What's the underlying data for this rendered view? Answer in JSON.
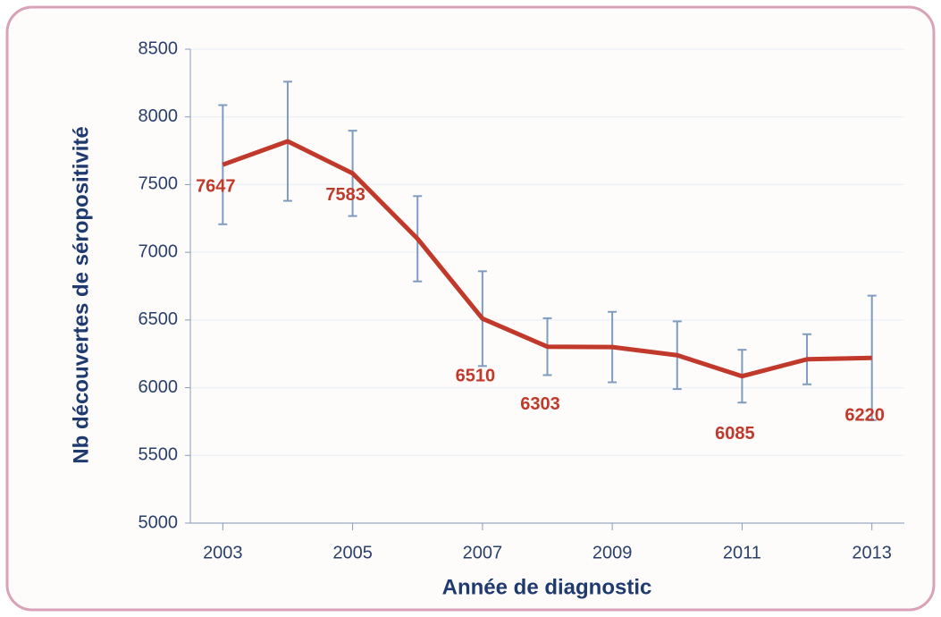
{
  "chart_data": {
    "type": "line",
    "x_label": "Année de diagnostic",
    "y_label": "Nb découvertes de séropositivité",
    "x": [
      2003,
      2004,
      2005,
      2006,
      2007,
      2008,
      2009,
      2010,
      2011,
      2012,
      2013
    ],
    "series": [
      {
        "name": "Nb découvertes de séropositivité",
        "color": "#c0392b",
        "values": [
          7647,
          7820,
          7583,
          7100,
          6510,
          6303,
          6300,
          6240,
          6085,
          6210,
          6220
        ],
        "errors": [
          440,
          440,
          315,
          315,
          350,
          210,
          260,
          250,
          195,
          185,
          460
        ],
        "value_labels": [
          "7647",
          null,
          "7583",
          null,
          "6510",
          "6303",
          null,
          null,
          "6085",
          null,
          "6220"
        ],
        "error_color": "#7f9cc0"
      }
    ],
    "xlim": [
      2002.5,
      2013.5
    ],
    "xticks": [
      2003,
      2005,
      2007,
      2009,
      2011,
      2013
    ],
    "ylim": [
      5000,
      8500
    ],
    "yticks": [
      5000,
      5500,
      6000,
      6500,
      7000,
      7500,
      8000,
      8500
    ],
    "grid": true
  }
}
